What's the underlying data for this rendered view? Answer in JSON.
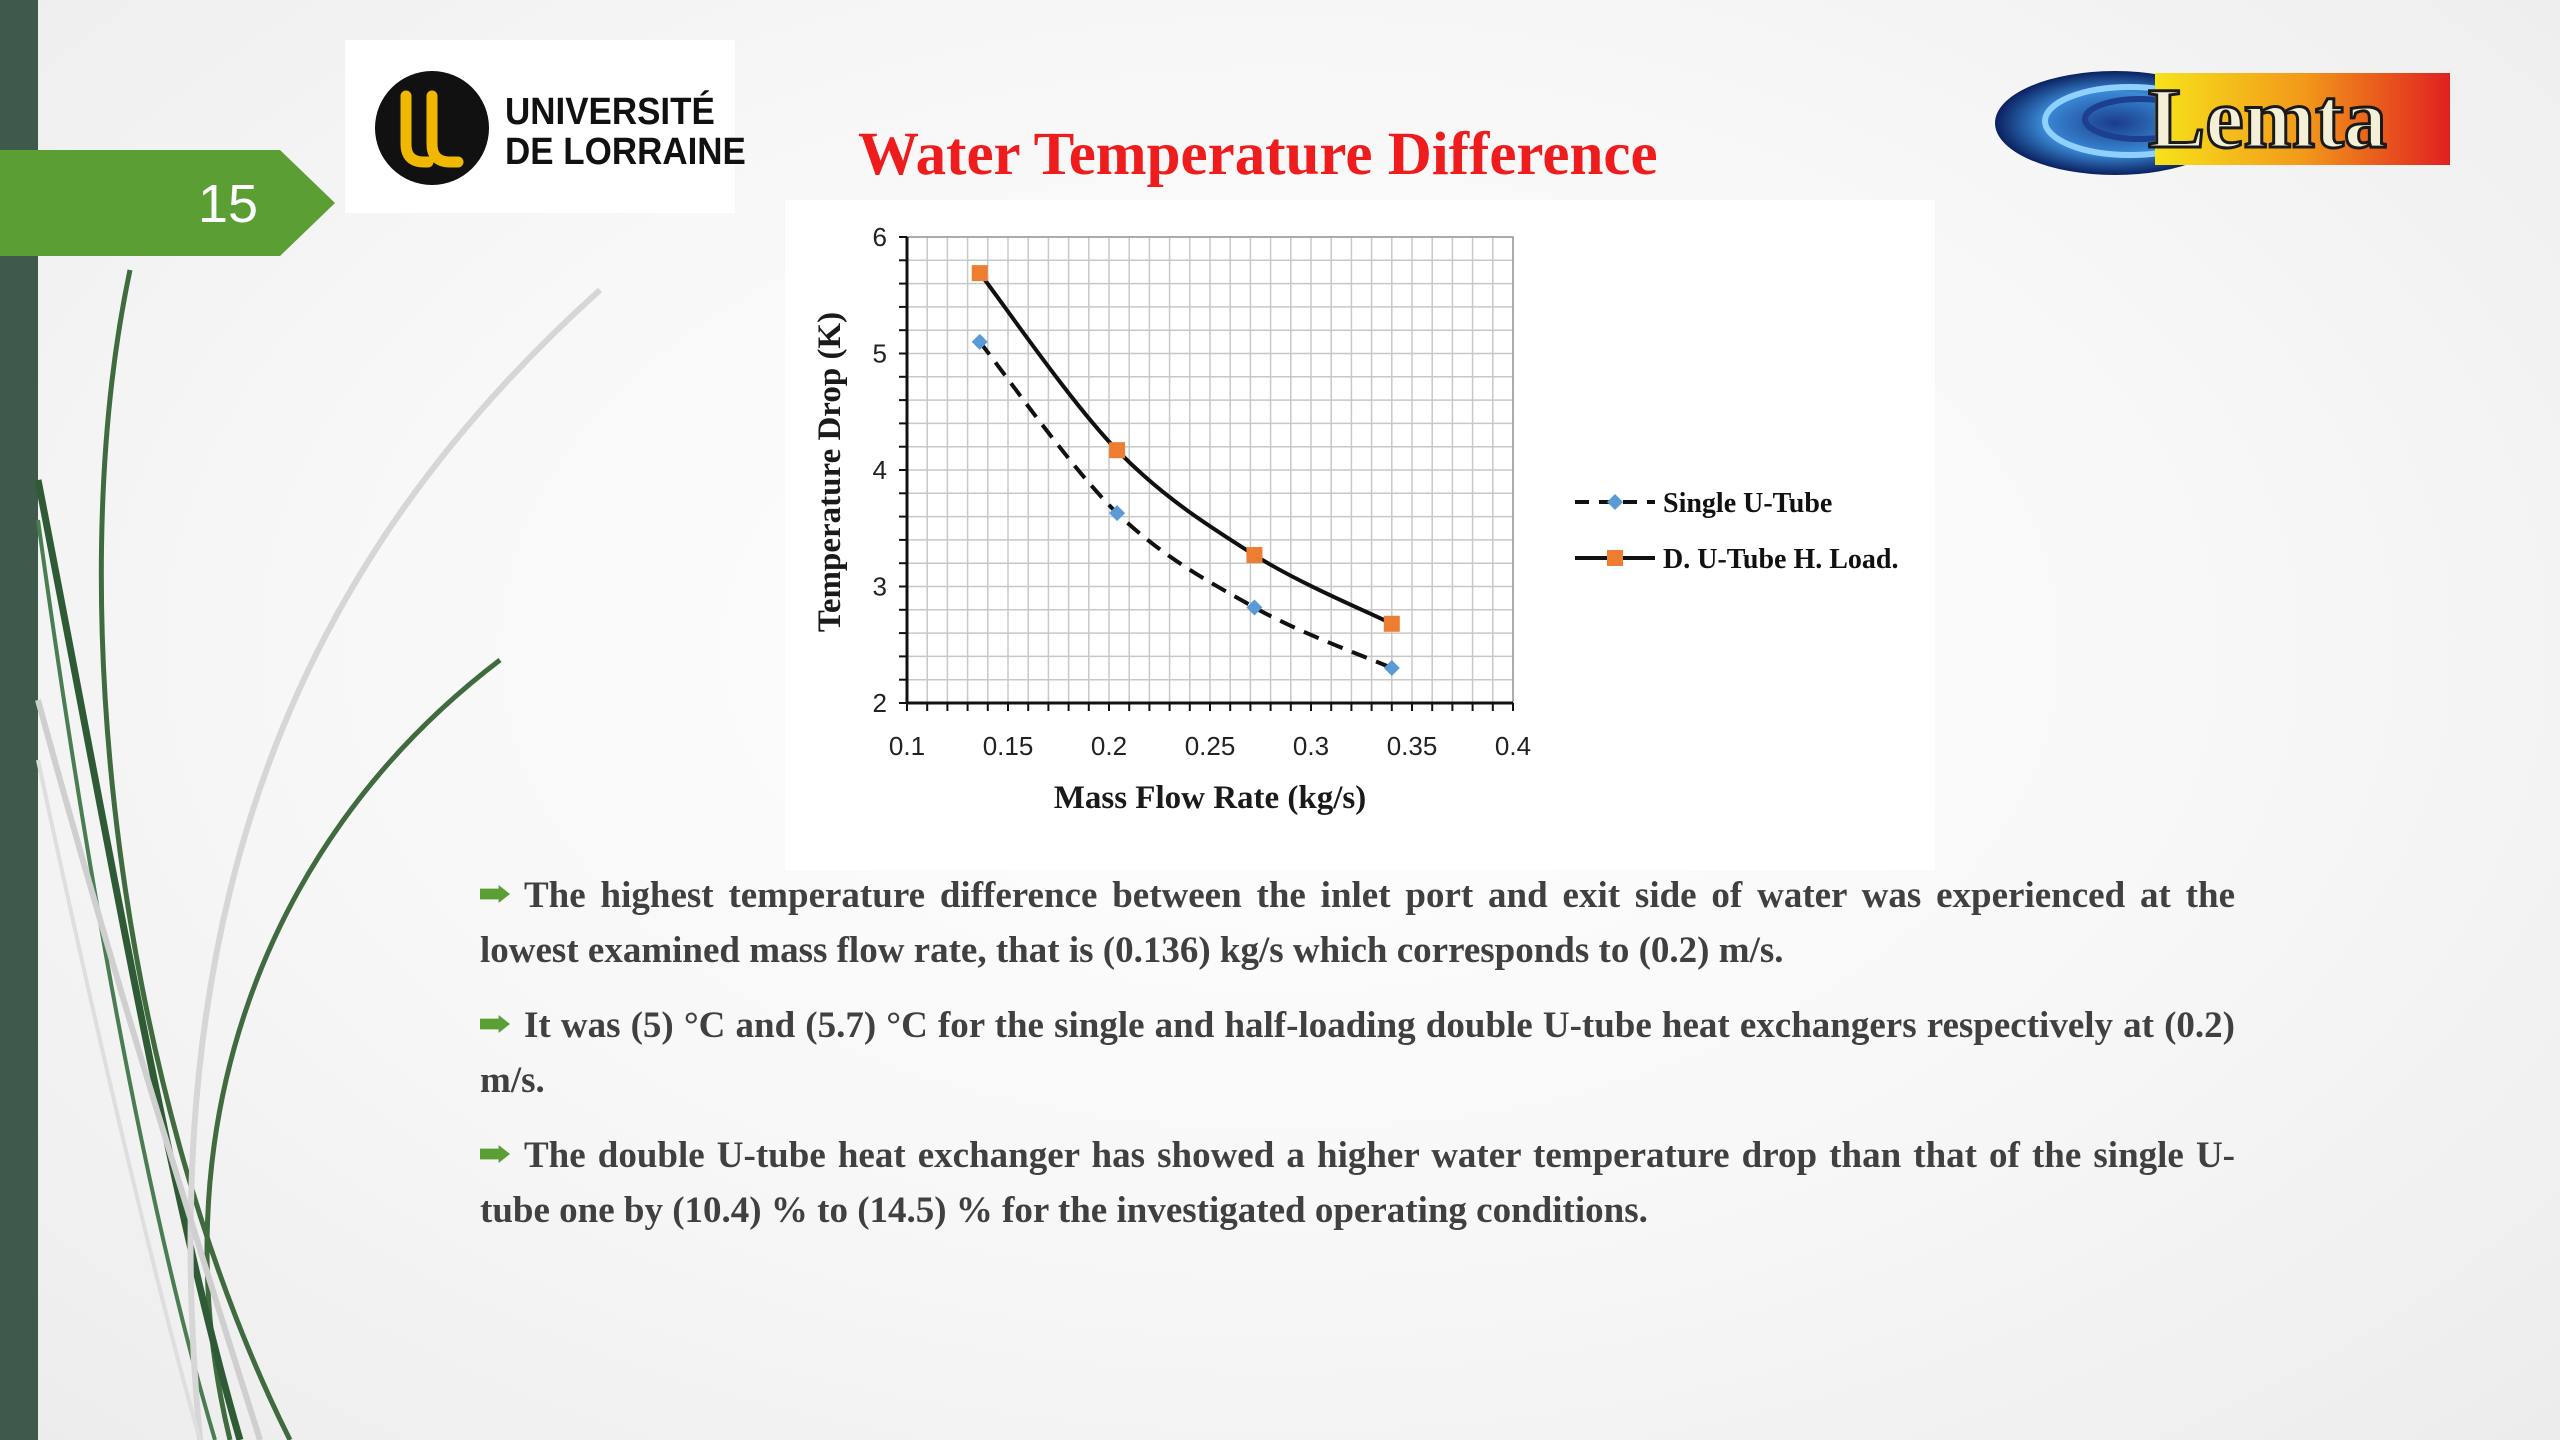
{
  "slide": {
    "number": "15",
    "title": "Water Temperature Difference"
  },
  "logos": {
    "university_line1": "UNIVERSITÉ",
    "university_line2": "DE LORRAINE",
    "lab": "Lemta"
  },
  "colors": {
    "title": "#ee1c1c",
    "accent_green": "#5a9e34",
    "left_bar": "#3f5a4c",
    "series_single": "#5b9bd5",
    "series_double": "#ed7d31"
  },
  "chart_data": {
    "type": "line",
    "xlabel": "Mass Flow Rate (kg/s)",
    "ylabel": "Temperature Drop (K)",
    "xlim": [
      0.1,
      0.4
    ],
    "ylim": [
      2,
      6
    ],
    "x_ticks": [
      "0.1",
      "0.15",
      "0.2",
      "0.25",
      "0.3",
      "0.35",
      "0.4"
    ],
    "y_ticks": [
      "2",
      "3",
      "4",
      "5",
      "6"
    ],
    "grid": true,
    "legend_position": "right",
    "series": [
      {
        "name": "Single U-Tube",
        "style": "dashed",
        "marker": "diamond",
        "x": [
          0.136,
          0.204,
          0.272,
          0.34
        ],
        "y": [
          5.1,
          3.63,
          2.82,
          2.3
        ]
      },
      {
        "name": "D. U-Tube H. Load.",
        "style": "solid",
        "marker": "square",
        "x": [
          0.136,
          0.204,
          0.272,
          0.34
        ],
        "y": [
          5.69,
          4.17,
          3.27,
          2.68
        ]
      }
    ]
  },
  "bullets": [
    "The highest temperature difference between the inlet port and exit side of water was experienced at the lowest examined mass flow rate, that is (0.136) kg/s which corresponds to (0.2) m/s.",
    "It was (5) °C and (5.7) °C for the single and half-loading double U-tube heat exchangers respectively at (0.2) m/s.",
    "The double U-tube heat exchanger has showed a higher water temperature drop than that of the single  U-tube one by (10.4) % to (14.5) % for the investigated operating conditions."
  ]
}
